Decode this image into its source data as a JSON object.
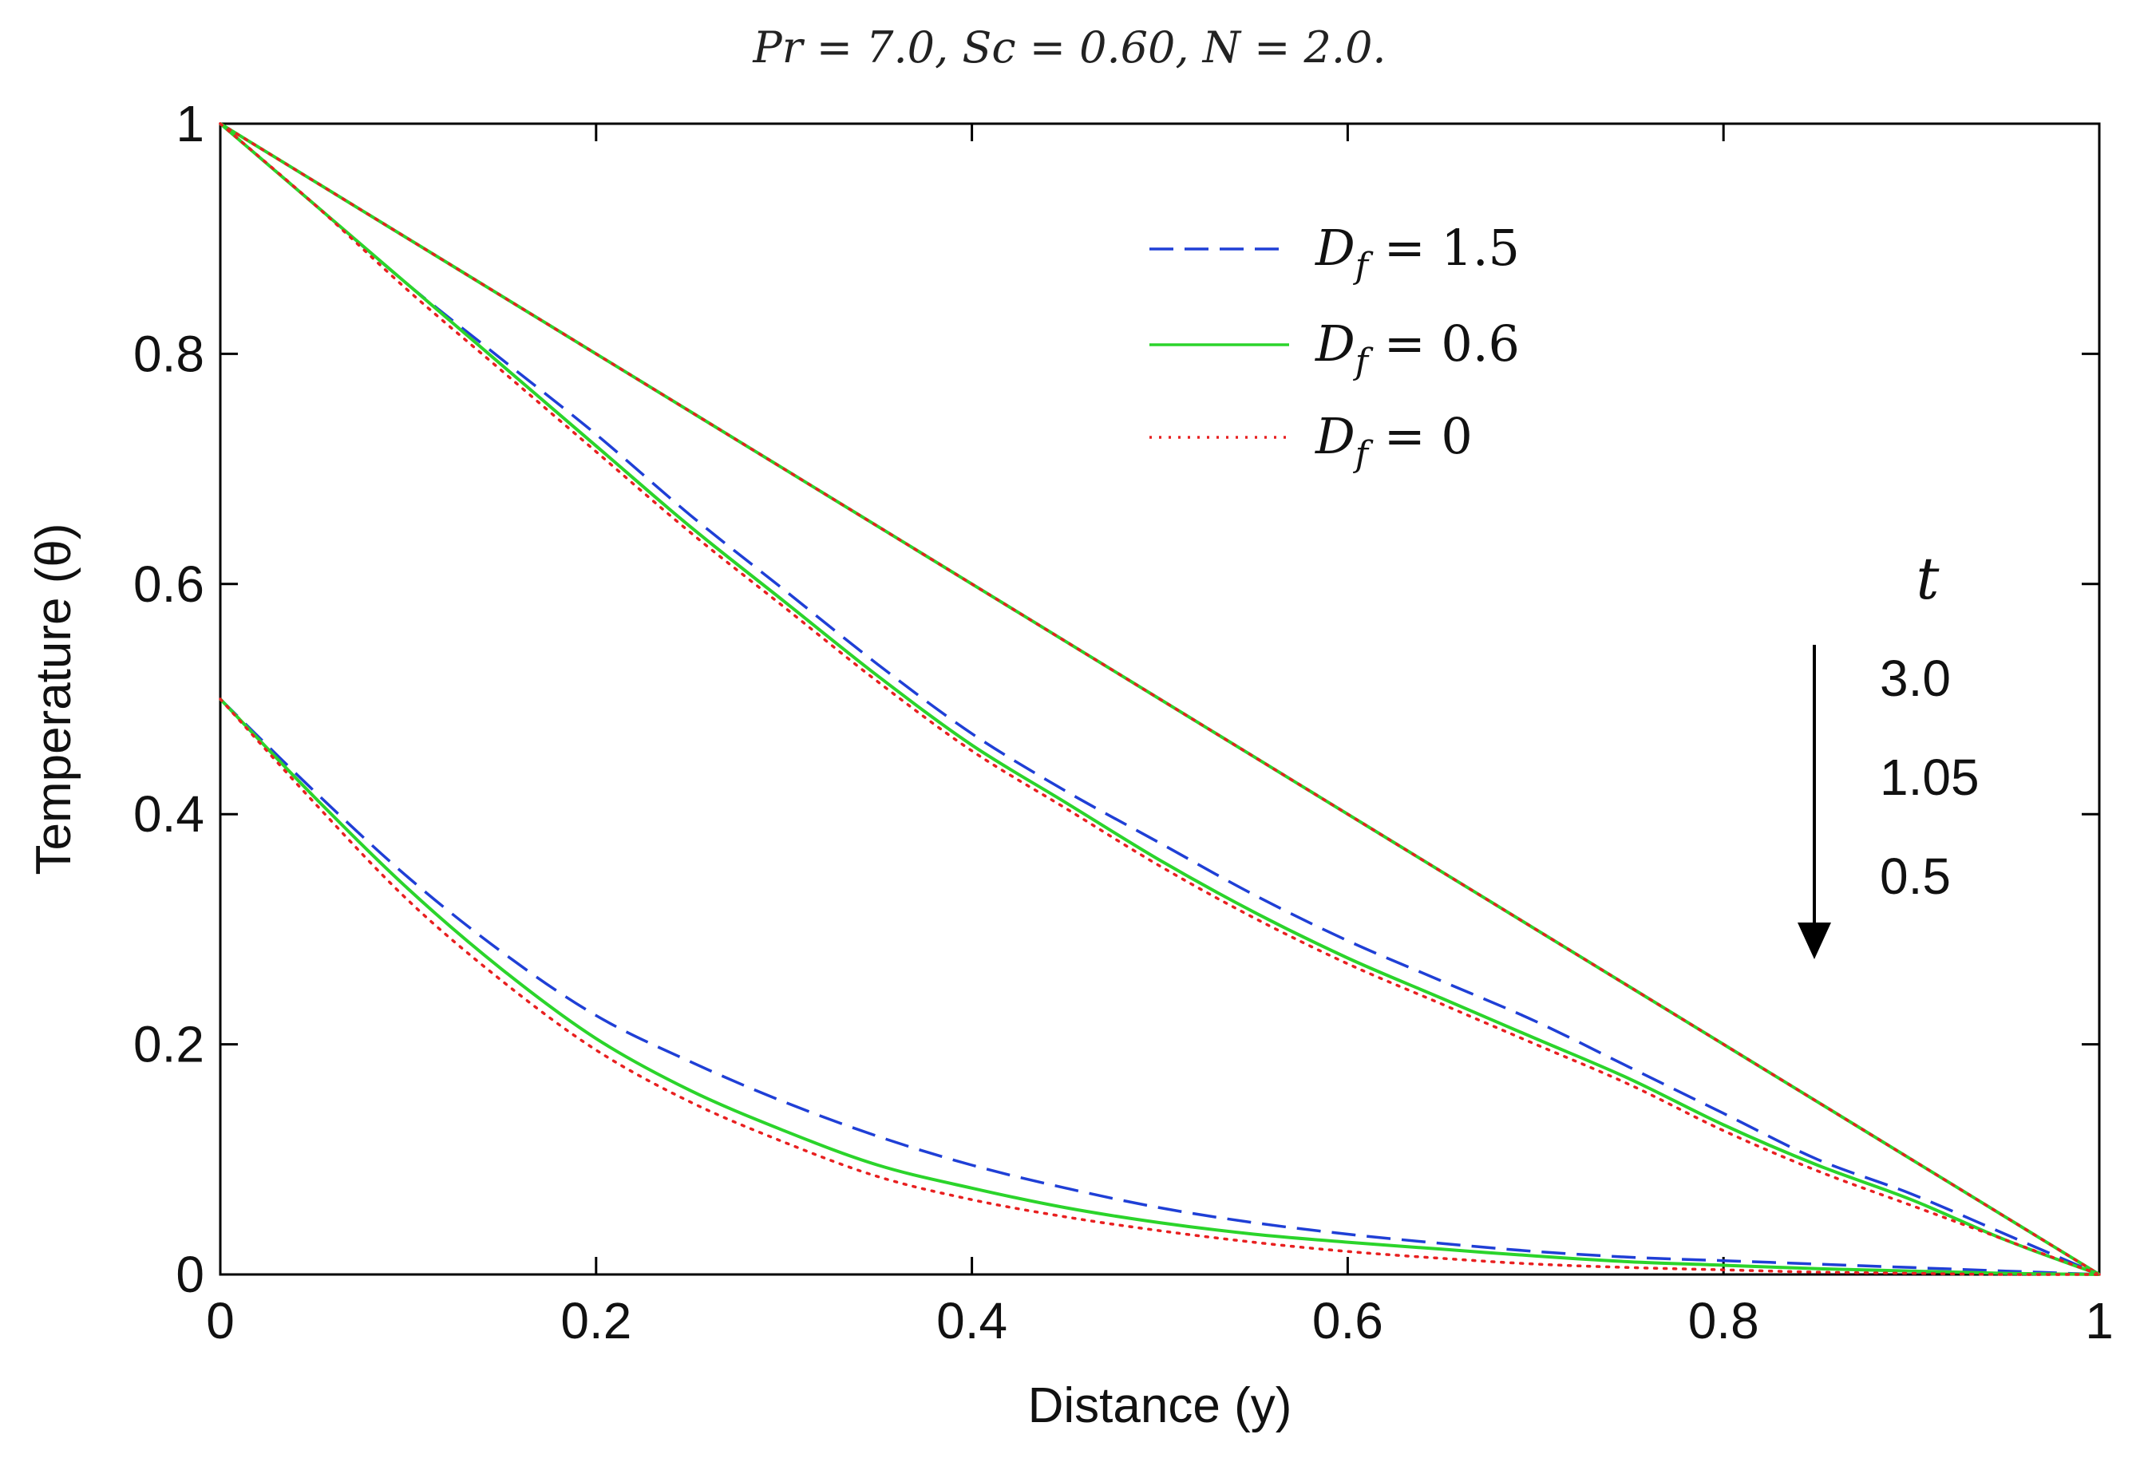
{
  "chart_data": {
    "type": "line",
    "title": "Pr = 7.0, Sc = 0.60, N = 2.0.",
    "xlabel": "Distance (y)",
    "ylabel": "Temperature (θ)",
    "xlim": [
      0,
      1
    ],
    "ylim": [
      0,
      1
    ],
    "xticks": [
      0,
      0.2,
      0.4,
      0.6,
      0.8,
      1
    ],
    "xtick_labels": [
      "0",
      "0.2",
      "0.4",
      "0.6",
      "0.8",
      "1"
    ],
    "yticks": [
      0,
      0.2,
      0.4,
      0.6,
      0.8,
      1
    ],
    "ytick_labels": [
      "0",
      "0.2",
      "0.4",
      "0.6",
      "0.8",
      "1"
    ],
    "grid": false,
    "legend": {
      "position": "top-right",
      "entries": [
        {
          "symbol": "D",
          "sub": "f",
          "rest": " = 1.5",
          "style": "dashed",
          "color": "#1f3fd6"
        },
        {
          "symbol": "D",
          "sub": "f",
          "rest": " = 0.6",
          "style": "solid",
          "color": "#2bd42b"
        },
        {
          "symbol": "D",
          "sub": "f",
          "rest": " = 0",
          "style": "dotted",
          "color": "#e82020"
        }
      ]
    },
    "annotation": {
      "variable": "t",
      "values": [
        "3.0",
        "1.05",
        "0.5"
      ],
      "arrow": "down"
    },
    "x": [
      0,
      0.05,
      0.1,
      0.15,
      0.2,
      0.25,
      0.3,
      0.35,
      0.4,
      0.45,
      0.5,
      0.55,
      0.6,
      0.65,
      0.7,
      0.75,
      0.8,
      0.85,
      0.9,
      0.95,
      1.0
    ],
    "groups": [
      {
        "t": "3.0",
        "series": [
          {
            "name": "D_f = 1.5",
            "style": "dashed",
            "color": "#1f3fd6",
            "values": [
              1.0,
              0.95,
              0.9,
              0.85,
              0.8,
              0.75,
              0.7,
              0.65,
              0.6,
              0.55,
              0.5,
              0.45,
              0.4,
              0.35,
              0.3,
              0.25,
              0.2,
              0.15,
              0.1,
              0.05,
              0.0
            ]
          },
          {
            "name": "D_f = 0.6",
            "style": "solid",
            "color": "#2bd42b",
            "values": [
              1.0,
              0.95,
              0.9,
              0.85,
              0.8,
              0.75,
              0.7,
              0.65,
              0.6,
              0.55,
              0.5,
              0.45,
              0.4,
              0.35,
              0.3,
              0.25,
              0.2,
              0.15,
              0.1,
              0.05,
              0.0
            ]
          },
          {
            "name": "D_f = 0",
            "style": "dotted",
            "color": "#e82020",
            "values": [
              1.0,
              0.95,
              0.9,
              0.85,
              0.8,
              0.75,
              0.7,
              0.65,
              0.6,
              0.55,
              0.5,
              0.45,
              0.4,
              0.35,
              0.3,
              0.25,
              0.2,
              0.15,
              0.1,
              0.05,
              0.0
            ]
          }
        ]
      },
      {
        "t": "1.05",
        "series": [
          {
            "name": "D_f = 1.5",
            "style": "dashed",
            "color": "#1f3fd6",
            "values": [
              1.0,
              0.93,
              0.86,
              0.795,
              0.73,
              0.66,
              0.595,
              0.53,
              0.47,
              0.42,
              0.375,
              0.33,
              0.29,
              0.255,
              0.22,
              0.18,
              0.14,
              0.1,
              0.07,
              0.035,
              0.0
            ]
          },
          {
            "name": "D_f = 0.6",
            "style": "solid",
            "color": "#2bd42b",
            "values": [
              1.0,
              0.93,
              0.86,
              0.79,
              0.72,
              0.65,
              0.585,
              0.52,
              0.46,
              0.41,
              0.36,
              0.315,
              0.275,
              0.24,
              0.205,
              0.17,
              0.13,
              0.095,
              0.065,
              0.03,
              0.0
            ]
          },
          {
            "name": "D_f = 0",
            "style": "dotted",
            "color": "#e82020",
            "values": [
              1.0,
              0.93,
              0.855,
              0.785,
              0.715,
              0.645,
              0.58,
              0.515,
              0.455,
              0.405,
              0.355,
              0.31,
              0.27,
              0.235,
              0.2,
              0.165,
              0.125,
              0.09,
              0.06,
              0.03,
              0.0
            ]
          }
        ]
      },
      {
        "t": "0.5",
        "series": [
          {
            "name": "D_f = 1.5",
            "style": "dashed",
            "color": "#1f3fd6",
            "values": [
              0.5,
              0.42,
              0.345,
              0.28,
              0.225,
              0.185,
              0.15,
              0.12,
              0.095,
              0.075,
              0.058,
              0.045,
              0.035,
              0.027,
              0.02,
              0.015,
              0.012,
              0.009,
              0.006,
              0.003,
              0.0
            ]
          },
          {
            "name": "D_f = 0.6",
            "style": "solid",
            "color": "#2bd42b",
            "values": [
              0.5,
              0.415,
              0.335,
              0.265,
              0.205,
              0.16,
              0.125,
              0.095,
              0.075,
              0.058,
              0.045,
              0.035,
              0.028,
              0.022,
              0.016,
              0.011,
              0.008,
              0.005,
              0.003,
              0.001,
              0.0
            ]
          },
          {
            "name": "D_f = 0",
            "style": "dotted",
            "color": "#e82020",
            "values": [
              0.5,
              0.41,
              0.325,
              0.255,
              0.195,
              0.15,
              0.115,
              0.085,
              0.065,
              0.05,
              0.038,
              0.028,
              0.02,
              0.014,
              0.009,
              0.006,
              0.004,
              0.002,
              0.001,
              0.0,
              0.0
            ]
          }
        ]
      }
    ]
  }
}
